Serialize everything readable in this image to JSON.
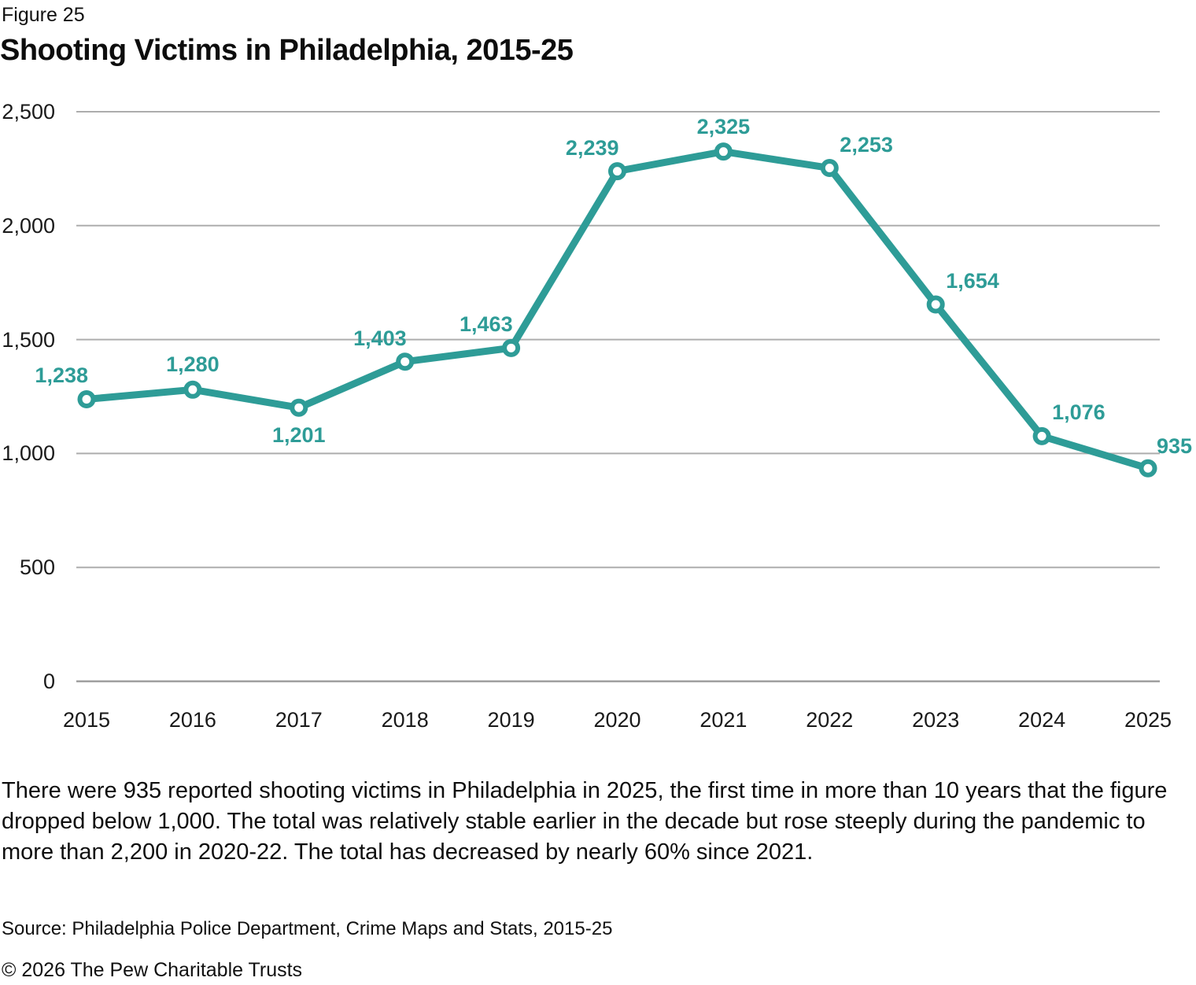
{
  "figure_label": "Figure 25",
  "title": "Shooting Victims in Philadelphia, 2015-25",
  "chart_data": {
    "type": "line",
    "title": "Shooting Victims in Philadelphia, 2015-25",
    "categories": [
      "2015",
      "2016",
      "2017",
      "2018",
      "2019",
      "2020",
      "2021",
      "2022",
      "2023",
      "2024",
      "2025"
    ],
    "values": [
      1238,
      1280,
      1201,
      1403,
      1463,
      2239,
      2325,
      2253,
      1654,
      1076,
      935
    ],
    "point_labels": [
      "1,238",
      "1,280",
      "1,201",
      "1,403",
      "1,463",
      "2,239",
      "2,325",
      "2,253",
      "1,654",
      "1,076",
      "935"
    ],
    "label_anchors": [
      "above-left",
      "above",
      "below",
      "above-left",
      "above-left",
      "above-left",
      "above",
      "above-right",
      "above-right",
      "above-right",
      "right"
    ],
    "y_ticks": [
      {
        "value": 0,
        "label": "0"
      },
      {
        "value": 500,
        "label": "500"
      },
      {
        "value": 1000,
        "label": "1,000"
      },
      {
        "value": 1500,
        "label": "1,500"
      },
      {
        "value": 2000,
        "label": "2,000"
      },
      {
        "value": 2500,
        "label": "2,500"
      }
    ],
    "ylim": [
      0,
      2500
    ],
    "grid": true,
    "legend_position": "none",
    "line_color": "#2E9C97",
    "marker_fill": "#FFFFFF",
    "grid_color": "#ADADAD",
    "axis_line_color": "#9E9E9E",
    "point_label_color": "#2E9C97",
    "tick_label_color": "#1A1A1A"
  },
  "caption": "There were 935 reported shooting victims in Philadelphia in 2025, the first time in more than 10 years that the figure dropped below 1,000. The total was relatively stable earlier in the decade but rose steeply during the pandemic to more than 2,200 in 2020-22. The total has decreased by nearly 60% since 2021.",
  "source": "Source: Philadelphia Police Department, Crime Maps and Stats, 2015-25",
  "copyright": "© 2026 The Pew Charitable Trusts"
}
